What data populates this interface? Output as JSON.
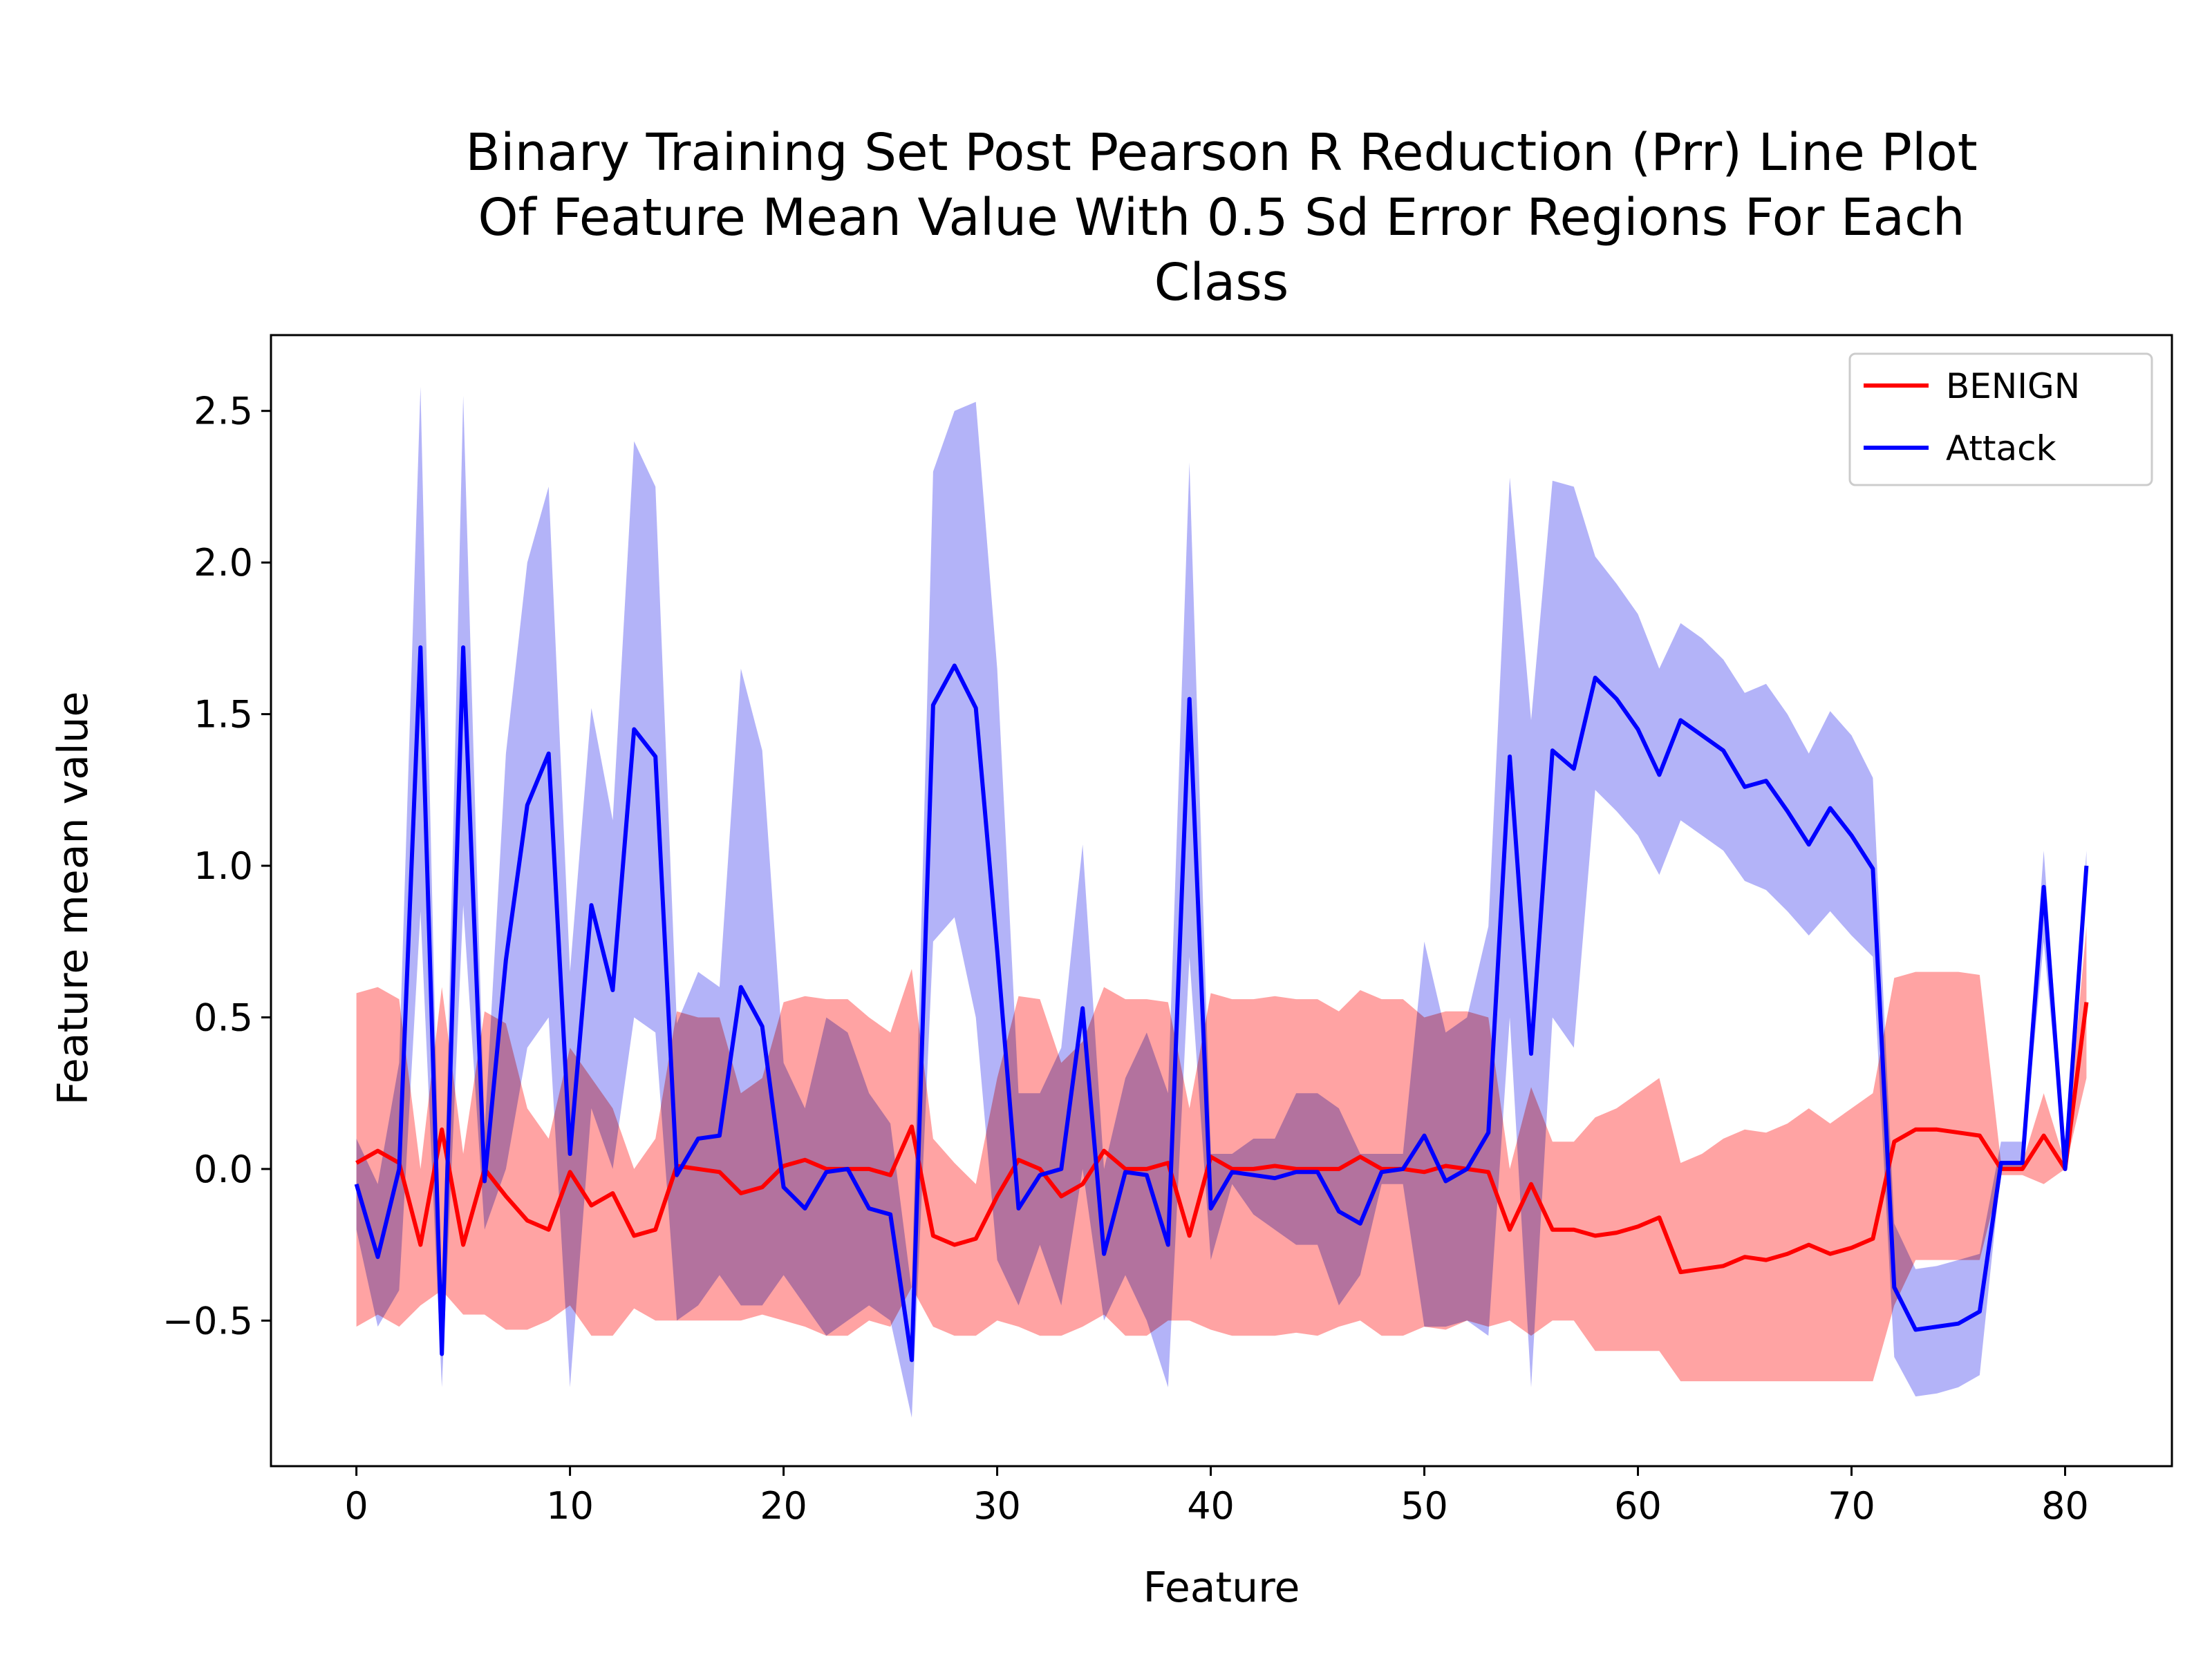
{
  "chart_data": {
    "type": "line",
    "title_lines": [
      "Binary Training Set Post Pearson R Reduction (Prr) Line Plot",
      "Of Feature Mean Value With 0.5 Sd Error Regions For Each",
      "Class"
    ],
    "xlabel": "Feature",
    "ylabel": "Feature mean value",
    "xlim": [
      -4.0,
      85.0
    ],
    "ylim": [
      -0.98,
      2.75
    ],
    "x_ticks": [
      0,
      10,
      20,
      30,
      40,
      50,
      60,
      70,
      80
    ],
    "y_ticks": [
      -0.5,
      0.0,
      0.5,
      1.0,
      1.5,
      2.0,
      2.5
    ],
    "y_tick_labels": [
      "−0.5",
      "0.0",
      "0.5",
      "1.0",
      "1.5",
      "2.0",
      "2.5"
    ],
    "grid": false,
    "legend_position": "top-right",
    "series": [
      {
        "name": "BENIGN",
        "color": "#ff0000",
        "band_color": "#ffa3a3",
        "mean": [
          0.02,
          0.06,
          0.02,
          -0.25,
          0.13,
          -0.25,
          0.0,
          -0.09,
          -0.17,
          -0.2,
          -0.01,
          -0.12,
          -0.08,
          -0.22,
          -0.2,
          0.01,
          0.0,
          -0.01,
          -0.08,
          -0.06,
          0.01,
          0.03,
          0.0,
          0.0,
          0.0,
          -0.02,
          0.14,
          -0.22,
          -0.25,
          -0.23,
          -0.09,
          0.03,
          0.0,
          -0.09,
          -0.05,
          0.06,
          0.0,
          0.0,
          0.02,
          -0.22,
          0.04,
          0.0,
          0.0,
          0.01,
          0.0,
          0.0,
          0.0,
          0.04,
          0.0,
          0.0,
          -0.01,
          0.01,
          0.0,
          -0.01,
          -0.2,
          -0.05,
          -0.2,
          -0.2,
          -0.22,
          -0.21,
          -0.19,
          -0.16,
          -0.34,
          -0.33,
          -0.32,
          -0.29,
          -0.3,
          -0.28,
          -0.25,
          -0.28,
          -0.26,
          -0.23,
          0.09,
          0.13,
          0.13,
          0.12,
          0.11,
          0.0,
          0.0,
          0.11,
          0.0,
          0.55
        ],
        "lower": [
          -0.52,
          -0.48,
          -0.52,
          -0.45,
          -0.4,
          -0.48,
          -0.48,
          -0.53,
          -0.53,
          -0.5,
          -0.45,
          -0.55,
          -0.55,
          -0.46,
          -0.5,
          -0.5,
          -0.5,
          -0.5,
          -0.5,
          -0.48,
          -0.5,
          -0.52,
          -0.55,
          -0.55,
          -0.5,
          -0.52,
          -0.39,
          -0.52,
          -0.55,
          -0.55,
          -0.5,
          -0.52,
          -0.55,
          -0.55,
          -0.52,
          -0.48,
          -0.55,
          -0.55,
          -0.5,
          -0.5,
          -0.53,
          -0.55,
          -0.55,
          -0.55,
          -0.54,
          -0.55,
          -0.52,
          -0.5,
          -0.55,
          -0.55,
          -0.52,
          -0.53,
          -0.5,
          -0.52,
          -0.5,
          -0.55,
          -0.5,
          -0.5,
          -0.6,
          -0.6,
          -0.6,
          -0.6,
          -0.7,
          -0.7,
          -0.7,
          -0.7,
          -0.7,
          -0.7,
          -0.7,
          -0.7,
          -0.7,
          -0.7,
          -0.45,
          -0.3,
          -0.3,
          -0.3,
          -0.3,
          -0.02,
          -0.02,
          -0.05,
          0.0,
          0.3
        ],
        "upper": [
          0.58,
          0.6,
          0.56,
          0.0,
          0.6,
          0.05,
          0.52,
          0.48,
          0.2,
          0.1,
          0.4,
          0.3,
          0.2,
          0.0,
          0.1,
          0.52,
          0.5,
          0.5,
          0.25,
          0.3,
          0.55,
          0.57,
          0.56,
          0.56,
          0.5,
          0.45,
          0.66,
          0.1,
          0.02,
          -0.05,
          0.3,
          0.57,
          0.56,
          0.35,
          0.42,
          0.6,
          0.56,
          0.56,
          0.55,
          0.2,
          0.58,
          0.56,
          0.56,
          0.57,
          0.56,
          0.56,
          0.52,
          0.59,
          0.56,
          0.56,
          0.5,
          0.52,
          0.52,
          0.5,
          0.0,
          0.27,
          0.09,
          0.09,
          0.17,
          0.2,
          0.25,
          0.3,
          0.02,
          0.05,
          0.1,
          0.13,
          0.12,
          0.15,
          0.2,
          0.15,
          0.2,
          0.25,
          0.63,
          0.65,
          0.65,
          0.65,
          0.64,
          0.02,
          0.02,
          0.25,
          0.02,
          0.8
        ]
      },
      {
        "name": "Attack",
        "color": "#0000ff",
        "band_color": "#a6a6f7",
        "mean": [
          -0.05,
          -0.29,
          0.0,
          1.72,
          -0.61,
          1.72,
          -0.04,
          0.69,
          1.2,
          1.37,
          0.05,
          0.87,
          0.59,
          1.45,
          1.36,
          -0.02,
          0.1,
          0.11,
          0.6,
          0.47,
          -0.06,
          -0.13,
          -0.01,
          0.0,
          -0.13,
          -0.15,
          -0.63,
          1.53,
          1.66,
          1.52,
          0.72,
          -0.13,
          -0.02,
          0.0,
          0.53,
          -0.28,
          -0.01,
          -0.02,
          -0.25,
          1.55,
          -0.13,
          -0.01,
          -0.02,
          -0.03,
          -0.01,
          -0.01,
          -0.14,
          -0.18,
          -0.01,
          0.0,
          0.11,
          -0.04,
          0.0,
          0.12,
          1.36,
          0.38,
          1.38,
          1.32,
          1.62,
          1.55,
          1.45,
          1.3,
          1.48,
          1.43,
          1.38,
          1.26,
          1.28,
          1.18,
          1.07,
          1.19,
          1.1,
          0.99,
          -0.39,
          -0.53,
          -0.52,
          -0.51,
          -0.47,
          0.02,
          0.02,
          0.93,
          0.0,
          1.0
        ],
        "lower": [
          -0.2,
          -0.52,
          -0.4,
          0.85,
          -0.72,
          0.87,
          -0.2,
          0.0,
          0.4,
          0.5,
          -0.72,
          0.2,
          0.0,
          0.5,
          0.45,
          -0.5,
          -0.45,
          -0.35,
          -0.45,
          -0.45,
          -0.35,
          -0.45,
          -0.55,
          -0.5,
          -0.45,
          -0.5,
          -0.82,
          0.75,
          0.83,
          0.5,
          -0.3,
          -0.45,
          -0.25,
          -0.45,
          0.0,
          -0.5,
          -0.35,
          -0.5,
          -0.72,
          0.7,
          -0.3,
          -0.05,
          -0.15,
          -0.2,
          -0.25,
          -0.25,
          -0.45,
          -0.35,
          -0.05,
          -0.05,
          -0.52,
          -0.52,
          -0.5,
          -0.55,
          0.5,
          -0.72,
          0.5,
          0.4,
          1.25,
          1.18,
          1.1,
          0.97,
          1.15,
          1.1,
          1.05,
          0.95,
          0.92,
          0.85,
          0.77,
          0.85,
          0.77,
          0.7,
          -0.62,
          -0.75,
          -0.74,
          -0.72,
          -0.68,
          0.0,
          0.0,
          0.75,
          0.0,
          0.95
        ],
        "upper": [
          0.1,
          -0.05,
          0.35,
          2.58,
          -0.5,
          2.55,
          0.12,
          1.37,
          2.0,
          2.25,
          0.65,
          1.52,
          1.15,
          2.4,
          2.25,
          0.48,
          0.65,
          0.6,
          1.65,
          1.38,
          0.35,
          0.2,
          0.5,
          0.45,
          0.25,
          0.15,
          -0.4,
          2.3,
          2.5,
          2.53,
          1.65,
          0.25,
          0.25,
          0.4,
          1.07,
          0.0,
          0.3,
          0.45,
          0.25,
          2.33,
          0.05,
          0.05,
          0.1,
          0.1,
          0.25,
          0.25,
          0.2,
          0.05,
          0.05,
          0.05,
          0.75,
          0.45,
          0.5,
          0.8,
          2.28,
          1.48,
          2.27,
          2.25,
          2.02,
          1.93,
          1.83,
          1.65,
          1.8,
          1.75,
          1.68,
          1.57,
          1.6,
          1.5,
          1.37,
          1.51,
          1.43,
          1.29,
          -0.18,
          -0.33,
          -0.32,
          -0.3,
          -0.28,
          0.09,
          0.09,
          1.05,
          0.05,
          1.05
        ]
      }
    ]
  }
}
